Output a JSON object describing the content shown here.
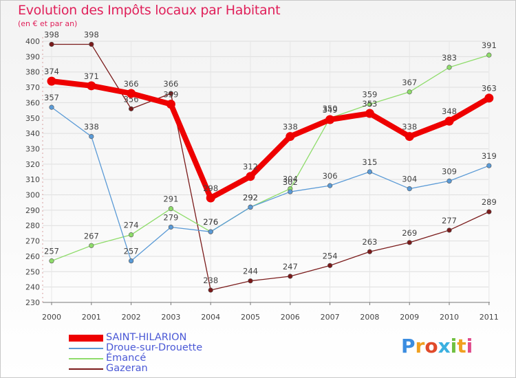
{
  "chart_data": {
    "type": "line",
    "title": "Evolution des Impôts locaux par Habitant",
    "subtitle": "(en € et par an)",
    "categories": [
      "2000",
      "2001",
      "2002",
      "2003",
      "2004",
      "2005",
      "2006",
      "2007",
      "2008",
      "2009",
      "2010",
      "2011"
    ],
    "ylim": [
      230,
      400
    ],
    "yticks": [
      230,
      240,
      250,
      260,
      270,
      280,
      290,
      300,
      310,
      320,
      330,
      340,
      350,
      360,
      370,
      380,
      390,
      400
    ],
    "series": [
      {
        "name": "Gazeran",
        "color": "#7a1a1a",
        "values": [
          398,
          398,
          356,
          366,
          238,
          244,
          247,
          254,
          263,
          269,
          277,
          289
        ]
      },
      {
        "name": "Émancé",
        "color": "#8edc6a",
        "values": [
          257,
          267,
          274,
          291,
          276,
          292,
          304,
          350,
          359,
          367,
          383,
          391
        ]
      },
      {
        "name": "Droue-sur-Drouette",
        "color": "#5a9ad6",
        "values": [
          357,
          338,
          257,
          279,
          276,
          292,
          302,
          306,
          315,
          304,
          309,
          319
        ]
      },
      {
        "name": "SAINT-HILARION",
        "color": "#ee0000",
        "values": [
          374,
          371,
          366,
          359,
          298,
          312,
          338,
          349,
          353,
          338,
          348,
          363
        ]
      }
    ]
  },
  "legend": [
    {
      "name": "SAINT-HILARION",
      "color": "#ee0000"
    },
    {
      "name": "Droue-sur-Drouette",
      "color": "#5a9ad6"
    },
    {
      "name": "Émancé",
      "color": "#8edc6a"
    },
    {
      "name": "Gazeran",
      "color": "#7a1a1a"
    }
  ],
  "brand": {
    "p": "P",
    "r": "r",
    "o": "o",
    "x": "x",
    "i1": "i",
    "t": "t",
    "i2": "i"
  }
}
